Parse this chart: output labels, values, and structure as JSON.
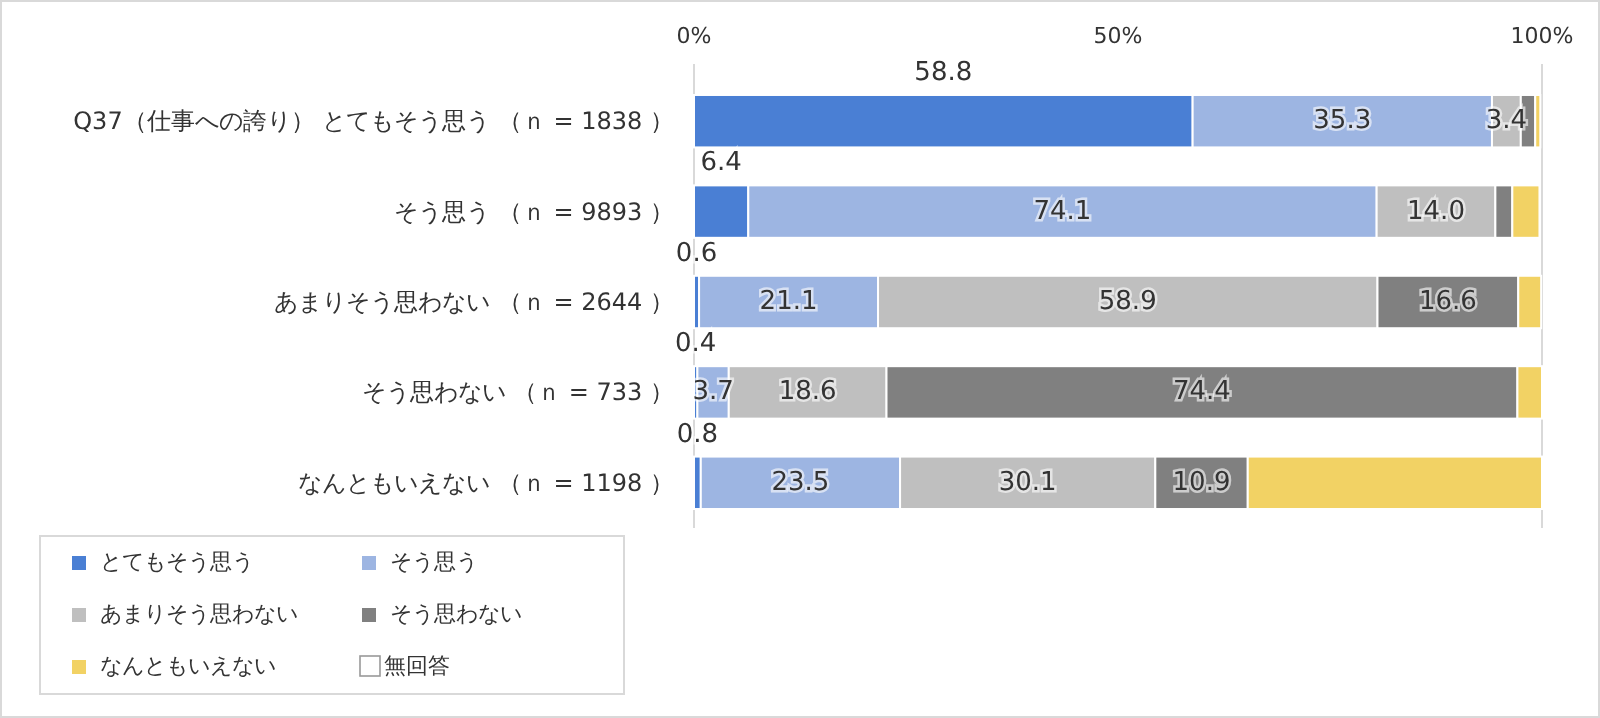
{
  "chart_data": {
    "type": "bar",
    "orientation": "horizontal",
    "stacked": true,
    "categories": [
      "Q37（仕事への誇り） とてもそう思う （ｎ = 1838 ）",
      "そう思う （ｎ = 9893 ）",
      "あまりそう思わない （ｎ = 2644 ）",
      "そう思わない （ｎ = 733 ）",
      "なんともいえない （ｎ = 1198 ）"
    ],
    "xlim": [
      0,
      100
    ],
    "xticks": [
      {
        "value": 0,
        "label": "0%"
      },
      {
        "value": 50,
        "label": "50%"
      },
      {
        "value": 100,
        "label": "100%"
      }
    ],
    "legend": "bottom left",
    "series": [
      {
        "name": "とてもそう思う",
        "color": "#4a7fd4",
        "values": [
          58.8,
          6.4,
          0.6,
          0.4,
          0.8
        ],
        "value_labels": [
          "58.8",
          "6.4",
          "0.6",
          "0.4",
          "0.8"
        ]
      },
      {
        "name": "そう思う",
        "color": "#9db5e2",
        "values": [
          35.3,
          74.1,
          21.1,
          3.7,
          23.5
        ],
        "value_labels": [
          "35.3",
          "74.1",
          "21.1",
          "3.7",
          "23.5"
        ]
      },
      {
        "name": "あまりそう思わない",
        "color": "#bfbfbf",
        "values": [
          3.4,
          14.0,
          58.9,
          18.6,
          30.1
        ],
        "value_labels": [
          "3.4",
          "14.0",
          "58.9",
          "18.6",
          "30.1"
        ]
      },
      {
        "name": "そう思わない",
        "color": "#808080",
        "values": [
          1.7,
          2.0,
          16.6,
          74.4,
          10.9
        ],
        "value_labels": [
          null,
          null,
          "16.6",
          "74.4",
          "10.9"
        ]
      },
      {
        "name": "なんともいえない",
        "color": "#f2d264",
        "values": [
          0.6,
          3.2,
          2.7,
          2.9,
          34.7
        ],
        "value_labels": [
          null,
          null,
          null,
          null,
          null
        ]
      },
      {
        "name": "無回答",
        "color": "#ffffff",
        "values": [
          null,
          null,
          null,
          null,
          null
        ]
      }
    ]
  }
}
